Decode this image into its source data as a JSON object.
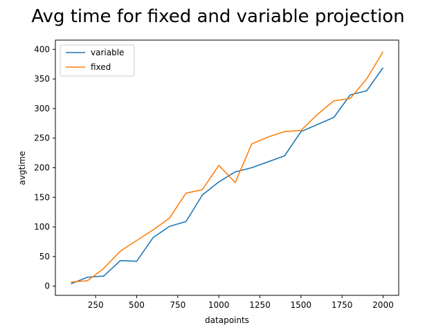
{
  "chart_data": {
    "type": "line",
    "title": "Avg time for fixed and variable projection",
    "xlabel": "datapoints",
    "ylabel": "avgtime",
    "x": [
      100,
      200,
      300,
      400,
      500,
      600,
      700,
      800,
      900,
      1000,
      1100,
      1200,
      1300,
      1400,
      1500,
      1600,
      1700,
      1800,
      1900,
      2000
    ],
    "series": [
      {
        "name": "variable",
        "color": "#1f77b4",
        "values": [
          4,
          15,
          17,
          43,
          42,
          82,
          101,
          109,
          154,
          176,
          193,
          200,
          210,
          220,
          261,
          273,
          285,
          323,
          330,
          369
        ]
      },
      {
        "name": "fixed",
        "color": "#ff7f0e",
        "values": [
          7,
          9,
          30,
          59,
          77,
          95,
          115,
          157,
          163,
          204,
          175,
          240,
          252,
          261,
          263,
          290,
          313,
          317,
          350,
          396
        ]
      }
    ],
    "xticks": [
      "250",
      "500",
      "750",
      "1000",
      "1250",
      "1500",
      "1750",
      "2000"
    ],
    "yticks": [
      "0",
      "50",
      "100",
      "150",
      "200",
      "250",
      "300",
      "350",
      "400"
    ],
    "xlim": [
      5,
      2095
    ],
    "ylim": [
      -15.6,
      415.6
    ],
    "grid": false,
    "legend_position": "top-left"
  }
}
